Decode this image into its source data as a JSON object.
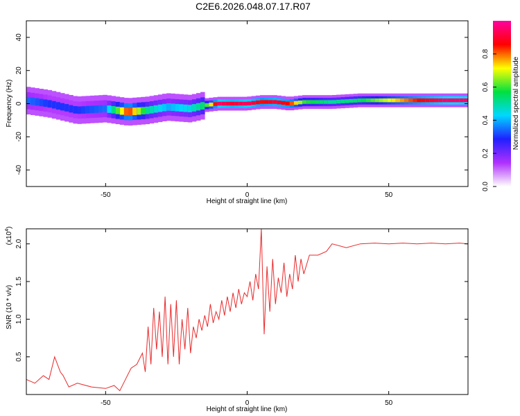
{
  "title": "C2E6.2026.048.07.17.R07",
  "colors": {
    "line": "#e8282a",
    "colormap": [
      "#ffffff",
      "#b030ff",
      "#2020ff",
      "#00d8ff",
      "#00e040",
      "#ffff00",
      "#ff0000",
      "#ff00a0"
    ]
  },
  "chart_data": [
    {
      "type": "heatmap",
      "title": "C2E6.2026.048.07.17.R07",
      "xlabel": "Height of straight line (km)",
      "ylabel": "Frequency (Hz)",
      "xlim": [
        -78,
        78
      ],
      "ylim": [
        -50,
        50
      ],
      "xticks": [
        -50,
        0,
        50
      ],
      "xtick_labels": [
        "-50",
        "0",
        "50"
      ],
      "yticks": [
        -40,
        -20,
        0,
        20,
        40
      ],
      "ytick_labels": [
        "-40",
        "-20",
        "0",
        "20",
        "40"
      ],
      "colorbar": {
        "label": "Normalized spectral amplitude",
        "range": [
          0,
          1
        ],
        "ticks": [
          0.0,
          0.2,
          0.4,
          0.6,
          0.8
        ],
        "tick_labels": [
          "0.0",
          "0.2",
          "0.4",
          "0.6",
          "0.8"
        ]
      },
      "ridge": {
        "x": [
          -78,
          -70,
          -60,
          -50,
          -42,
          -35,
          -28,
          -20,
          -15,
          -10,
          -5,
          0,
          5,
          10,
          15,
          20,
          30,
          40,
          50,
          60,
          70,
          78
        ],
        "frequency": [
          2,
          0,
          -4,
          -3,
          -5,
          -4,
          -2,
          -3,
          -1,
          0,
          0,
          0,
          1,
          1,
          0,
          1,
          1,
          2,
          2,
          2,
          2,
          2
        ],
        "amplitude": [
          0.35,
          0.3,
          0.3,
          0.35,
          0.85,
          0.5,
          0.4,
          0.45,
          0.55,
          0.95,
          0.9,
          0.95,
          0.85,
          0.9,
          0.85,
          0.6,
          0.5,
          0.55,
          0.7,
          0.85,
          0.95,
          0.95
        ]
      }
    },
    {
      "type": "line",
      "xlabel": "Height of straight line (km)",
      "ylabel": "SNR (10 * v/v)",
      "y_multiplier_label": "(x10",
      "y_multiplier_exp": "4",
      "y_multiplier_close": ")",
      "xlim": [
        -78,
        78
      ],
      "ylim": [
        0,
        2.2
      ],
      "xticks": [
        -50,
        0,
        50
      ],
      "xtick_labels": [
        "-50",
        "0",
        "50"
      ],
      "yticks": [
        0.5,
        1.0,
        1.5,
        2.0
      ],
      "ytick_labels": [
        "0.5",
        "1.0",
        "1.5",
        "2.0"
      ],
      "series": [
        {
          "x": [
            -78,
            -75,
            -72,
            -70,
            -68,
            -66,
            -65,
            -63,
            -60,
            -55,
            -50,
            -47,
            -45,
            -43,
            -41,
            -39,
            -37,
            -36,
            -35,
            -34,
            -33,
            -32,
            -31,
            -30,
            -29,
            -28,
            -27,
            -26,
            -25,
            -24,
            -23,
            -22,
            -21,
            -20,
            -19,
            -18,
            -17,
            -16,
            -15,
            -14,
            -13,
            -12,
            -11,
            -10,
            -9,
            -8,
            -7,
            -6,
            -5,
            -4,
            -3,
            -2,
            -1,
            0,
            1,
            2,
            3,
            4,
            5,
            6,
            7,
            8,
            9,
            10,
            11,
            12,
            13,
            14,
            15,
            16,
            17,
            18,
            19,
            20,
            22,
            25,
            28,
            30,
            35,
            40,
            45,
            50,
            55,
            60,
            65,
            70,
            75,
            78
          ],
          "y": [
            0.2,
            0.15,
            0.25,
            0.2,
            0.5,
            0.3,
            0.25,
            0.1,
            0.15,
            0.1,
            0.08,
            0.12,
            0.05,
            0.2,
            0.35,
            0.4,
            0.55,
            0.3,
            0.9,
            0.4,
            1.15,
            0.6,
            1.1,
            0.5,
            1.3,
            0.4,
            1.2,
            0.5,
            1.25,
            0.4,
            1.0,
            0.6,
            1.15,
            0.55,
            0.9,
            0.75,
            1.0,
            0.85,
            1.05,
            0.9,
            1.2,
            0.95,
            1.1,
            1.0,
            1.25,
            1.05,
            1.3,
            1.1,
            1.35,
            1.15,
            1.4,
            1.2,
            1.35,
            1.3,
            1.5,
            1.25,
            1.6,
            1.4,
            2.2,
            0.8,
            1.7,
            1.1,
            1.8,
            1.2,
            1.55,
            1.35,
            1.75,
            1.3,
            1.6,
            1.4,
            1.85,
            1.5,
            1.8,
            1.6,
            1.85,
            1.85,
            1.9,
            2.0,
            1.95,
            2.0,
            2.01,
            2.0,
            2.01,
            2.0,
            2.01,
            2.0,
            2.01,
            2.0
          ]
        }
      ]
    }
  ]
}
